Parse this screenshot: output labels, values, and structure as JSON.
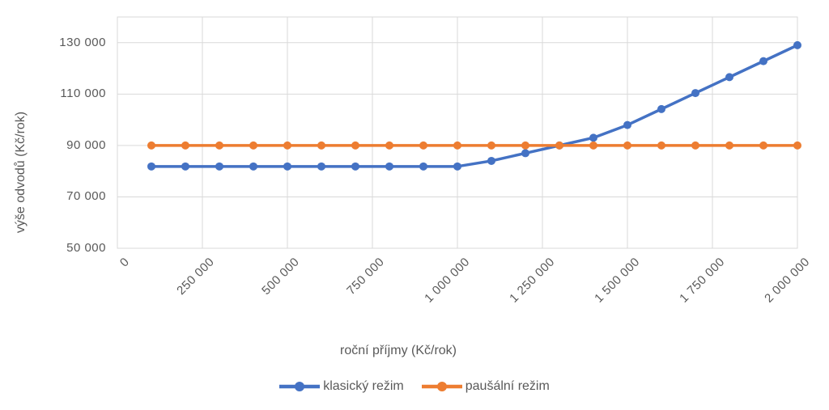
{
  "chart_data": {
    "type": "line",
    "title": "",
    "xlabel": "roční příjmy (Kč/rok)",
    "ylabel": "výše odvodů (Kč/rok)",
    "xlim": [
      0,
      2000000
    ],
    "ylim": [
      50000,
      140000
    ],
    "grid": true,
    "legend_position": "bottom",
    "x_ticks": [
      0,
      250000,
      500000,
      750000,
      1000000,
      1250000,
      1500000,
      1750000,
      2000000
    ],
    "x_tick_labels": [
      "0",
      "250 000",
      "500 000",
      "750 000",
      "1 000 000",
      "1 250 000",
      "1 500 000",
      "1 750 000",
      "2 000 000"
    ],
    "y_ticks": [
      50000,
      70000,
      90000,
      110000,
      130000
    ],
    "y_tick_labels": [
      "50 000",
      "70 000",
      "90 000",
      "110 000",
      "130 000"
    ],
    "x": [
      100000,
      200000,
      300000,
      400000,
      500000,
      600000,
      700000,
      800000,
      900000,
      1000000,
      1100000,
      1200000,
      1300000,
      1400000,
      1500000,
      1600000,
      1700000,
      1800000,
      1900000,
      2000000
    ],
    "series": [
      {
        "name": "klasický režim",
        "color": "#4472C4",
        "values": [
          81840,
          81840,
          81840,
          81840,
          81840,
          81840,
          81840,
          81840,
          81840,
          81840,
          84000,
          87000,
          90000,
          93000,
          97960,
          104170,
          110390,
          116600,
          122810,
          129020
        ]
      },
      {
        "name": "paušální režim",
        "color": "#ED7D31",
        "values": [
          90000,
          90000,
          90000,
          90000,
          90000,
          90000,
          90000,
          90000,
          90000,
          90000,
          90000,
          90000,
          90000,
          90000,
          90000,
          90000,
          90000,
          90000,
          90000,
          90000
        ]
      }
    ]
  },
  "colors": {
    "text": "#595959",
    "gridline": "#D9D9D9",
    "background": "#FFFFFF",
    "series_blue": "#4472C4",
    "series_orange": "#ED7D31"
  }
}
